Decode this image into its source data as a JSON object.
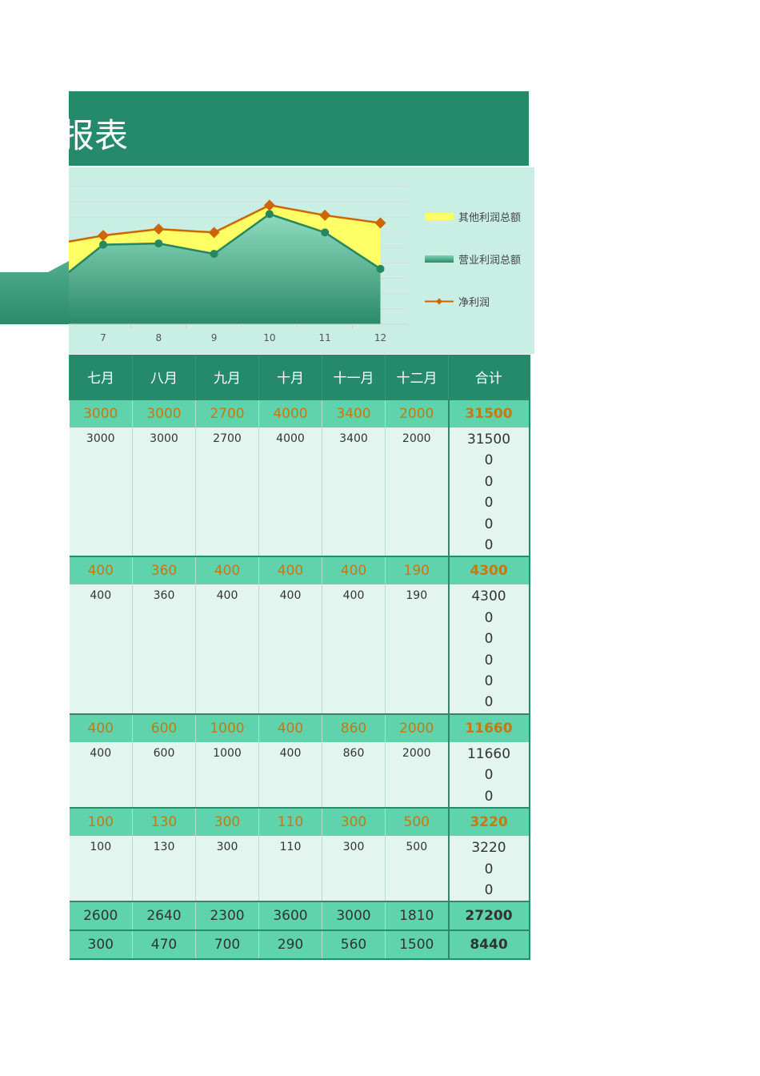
{
  "title": "报表",
  "chart_data": {
    "type": "area",
    "categories": [
      "7",
      "8",
      "9",
      "10",
      "11",
      "12"
    ],
    "ylim": [
      0,
      4500
    ],
    "grid": true,
    "legend_position": "right",
    "series": [
      {
        "name": "其他利润总额",
        "kind": "stacked-area",
        "color": "#ffff66",
        "values": [
          300,
          470,
          700,
          290,
          560,
          1500
        ]
      },
      {
        "name": "营业利润总额",
        "kind": "area",
        "color": "#2e9a74",
        "values": [
          2600,
          2640,
          2300,
          3600,
          3000,
          1810
        ]
      },
      {
        "name": "净利润",
        "kind": "line",
        "color": "#cc6600",
        "values": [
          2900,
          3110,
          3000,
          3890,
          3560,
          3310
        ]
      }
    ]
  },
  "table": {
    "headers": [
      "七月",
      "八月",
      "九月",
      "十月",
      "十一月",
      "十二月",
      "合计"
    ],
    "sections": [
      {
        "band": [
          "3000",
          "3000",
          "2700",
          "4000",
          "3400",
          "2000",
          "31500"
        ],
        "detail": [
          "3000",
          "3000",
          "2700",
          "4000",
          "3400",
          "2000"
        ],
        "total_lines": [
          "31500",
          "0",
          "0",
          "0",
          "0",
          "0"
        ]
      },
      {
        "band": [
          "400",
          "360",
          "400",
          "400",
          "400",
          "190",
          "4300"
        ],
        "detail": [
          "400",
          "360",
          "400",
          "400",
          "400",
          "190"
        ],
        "total_lines": [
          "4300",
          "0",
          "0",
          "0",
          "0",
          "0"
        ]
      },
      {
        "band": [
          "400",
          "600",
          "1000",
          "400",
          "860",
          "2000",
          "11660"
        ],
        "detail": [
          "400",
          "600",
          "1000",
          "400",
          "860",
          "2000"
        ],
        "total_lines": [
          "11660",
          "0",
          "0"
        ]
      },
      {
        "band": [
          "100",
          "130",
          "300",
          "110",
          "300",
          "500",
          "3220"
        ],
        "detail": [
          "100",
          "130",
          "300",
          "110",
          "300",
          "500"
        ],
        "total_lines": [
          "3220",
          "0",
          "0"
        ]
      }
    ],
    "summary_rows": [
      [
        "2600",
        "2640",
        "2300",
        "3600",
        "3000",
        "1810",
        "27200"
      ],
      [
        "300",
        "470",
        "700",
        "290",
        "560",
        "1500",
        "8440"
      ]
    ]
  }
}
